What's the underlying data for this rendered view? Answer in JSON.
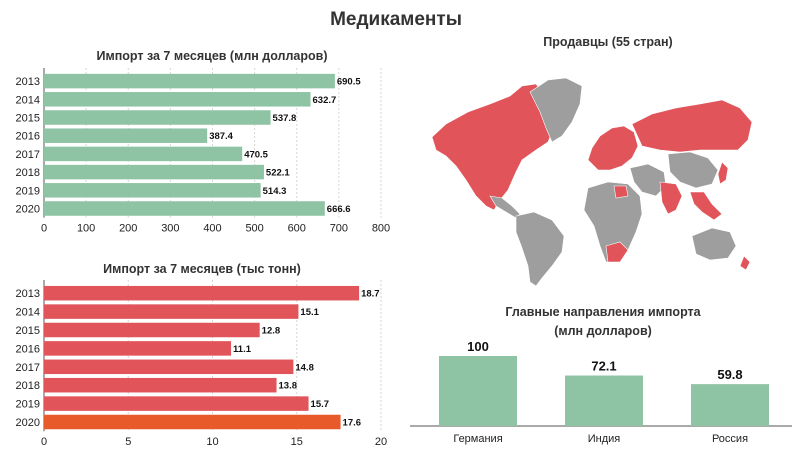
{
  "page": {
    "title": "Медикаменты"
  },
  "colors": {
    "green": "#8ec3a4",
    "red": "#e0545a",
    "orange": "#e85a2a",
    "grey": "#9e9e9e"
  },
  "map": {
    "title": "Продавцы (55 стран)"
  },
  "chart_data": [
    {
      "type": "bar",
      "orientation": "horizontal",
      "title": "Импорт за 7 месяцев (млн долларов)",
      "categories": [
        "2013",
        "2014",
        "2015",
        "2016",
        "2017",
        "2018",
        "2019",
        "2020"
      ],
      "values": [
        690.5,
        632.7,
        537.8,
        387.4,
        470.5,
        522.1,
        514.3,
        666.6
      ],
      "value_labels": [
        "690.5",
        "632.7",
        "537.8",
        "387.4",
        "470.5",
        "522.1",
        "514.3",
        "666.6"
      ],
      "xlim": [
        0,
        800
      ],
      "ticks": [
        "0",
        "100",
        "200",
        "300",
        "400",
        "500",
        "600",
        "700",
        "800"
      ],
      "grid": true,
      "color": "#8ec3a4"
    },
    {
      "type": "bar",
      "orientation": "horizontal",
      "title": "Импорт за 7 месяцев (тыс тонн)",
      "categories": [
        "2013",
        "2014",
        "2015",
        "2016",
        "2017",
        "2018",
        "2019",
        "2020"
      ],
      "values": [
        18.7,
        15.1,
        12.8,
        11.1,
        14.8,
        13.8,
        15.7,
        17.6
      ],
      "value_labels": [
        "18.7",
        "15.1",
        "12.8",
        "11.1",
        "14.8",
        "13.8",
        "15.7",
        "17.6"
      ],
      "xlim": [
        0,
        20
      ],
      "ticks": [
        "0",
        "5",
        "10",
        "15",
        "20"
      ],
      "grid": true,
      "color": "#e0545a",
      "highlight_category": "2020",
      "highlight_color": "#e85a2a"
    },
    {
      "type": "bar",
      "orientation": "vertical",
      "title": "Главные направления импорта",
      "subtitle": "(млн долларов)",
      "categories": [
        "Германия",
        "Индия",
        "Россия"
      ],
      "values": [
        100,
        72.1,
        59.8
      ],
      "value_labels": [
        "100",
        "72.1",
        "59.8"
      ],
      "ylim": [
        0,
        100
      ],
      "color": "#8ec3a4"
    }
  ]
}
